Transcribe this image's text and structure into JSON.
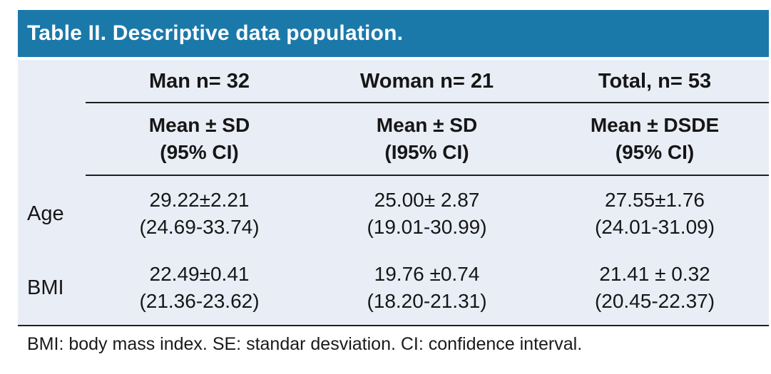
{
  "table": {
    "title": "Table II. Descriptive data population.",
    "columns": [
      {
        "group": "Man n= 32",
        "sub1": "Mean ± SD",
        "sub2": "(95% CI)"
      },
      {
        "group": "Woman n= 21",
        "sub1": "Mean ± SD",
        "sub2": "(I95% CI)"
      },
      {
        "group": "Total, n= 53",
        "sub1": "Mean ± DSDE",
        "sub2": "(95% CI)"
      }
    ],
    "rows": [
      {
        "label": "Age",
        "cells": [
          {
            "value": "29.22±2.21",
            "ci": "(24.69-33.74)"
          },
          {
            "value": "25.00± 2.87",
            "ci": "(19.01-30.99)"
          },
          {
            "value": "27.55±1.76",
            "ci": "(24.01-31.09)"
          }
        ]
      },
      {
        "label": "BMI",
        "cells": [
          {
            "value": "22.49±0.41",
            "ci": "(21.36-23.62)"
          },
          {
            "value": "19.76 ±0.74",
            "ci": "(18.20-21.31)"
          },
          {
            "value": "21.41 ± 0.32",
            "ci": "(20.45-22.37)"
          }
        ]
      }
    ],
    "footnote": "BMI: body mass index. SE: standar desviation. CI: confidence interval.",
    "colors": {
      "header_bg": "#1b79aa",
      "body_bg": "#e9edf6",
      "rule": "#1f1f1f",
      "title_text": "#ffffff",
      "text": "#161616"
    }
  }
}
